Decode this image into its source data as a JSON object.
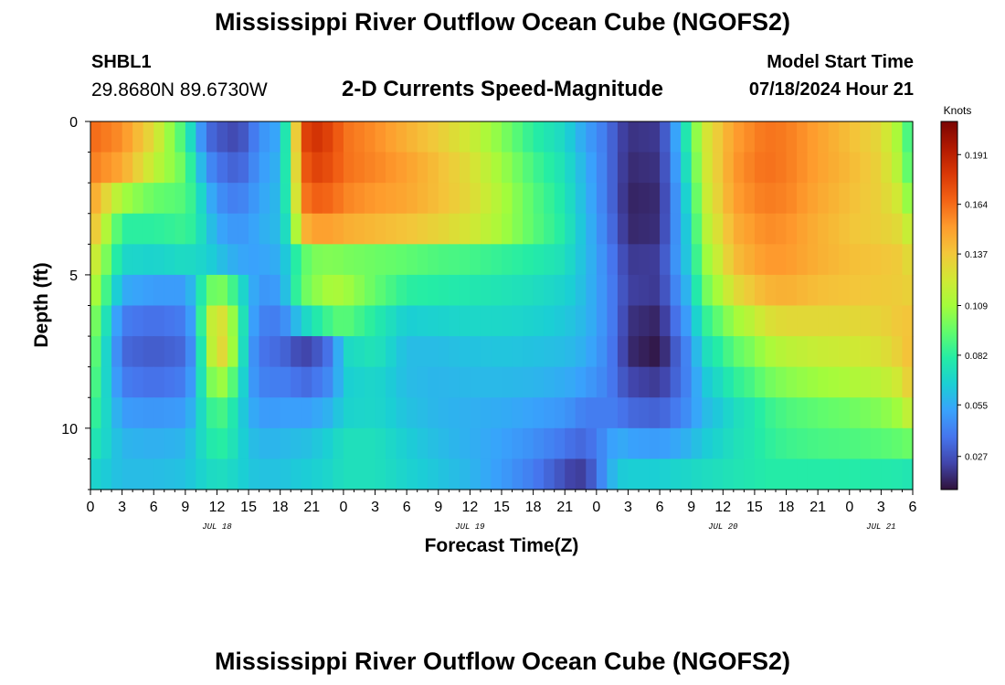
{
  "header": {
    "title": "Mississippi River Outflow Ocean Cube (NGOFS2)",
    "station": "SHBL1",
    "coords": "29.8680N  89.6730W",
    "subtitle": "2-D Currents Speed-Magnitude",
    "model_start_label": "Model Start Time",
    "model_start_value": "07/18/2024 Hour 21"
  },
  "footer": {
    "title": "Mississippi River Outflow Ocean Cube (NGOFS2)"
  },
  "chart_data": {
    "type": "heatmap",
    "title": "2-D Currents Speed-Magnitude",
    "xlabel": "Forecast Time(Z)",
    "ylabel": "Depth (ft)",
    "x_range_hours": [
      0,
      78
    ],
    "y_range_ft": [
      0,
      12
    ],
    "x_tick_labels": [
      "0",
      "3",
      "6",
      "9",
      "12",
      "15",
      "18",
      "21",
      "0",
      "3",
      "6",
      "9",
      "12",
      "15",
      "18",
      "21",
      "0",
      "3",
      "6",
      "9",
      "12",
      "15",
      "18",
      "21",
      "0",
      "3",
      "6"
    ],
    "date_labels": [
      {
        "label": "JUL 18",
        "hour": 12
      },
      {
        "label": "JUL 19",
        "hour": 36
      },
      {
        "label": "JUL 20",
        "hour": 60
      },
      {
        "label": "JUL 21",
        "hour": 75
      }
    ],
    "y_ticks": [
      {
        "value": 0,
        "label": "0"
      },
      {
        "value": 5,
        "label": "5"
      },
      {
        "value": 10,
        "label": "10"
      }
    ],
    "colorbar": {
      "unit": "Knots",
      "min": 0.009,
      "max": 0.209,
      "ticks": [
        "0.191",
        "0.164",
        "0.137",
        "0.109",
        "0.082",
        "0.055",
        "0.027"
      ],
      "tick_values": [
        0.191,
        0.164,
        0.137,
        0.109,
        0.082,
        0.055,
        0.027
      ]
    },
    "colormap": [
      "#30123b",
      "#4145ab",
      "#4675ed",
      "#39a2fc",
      "#1bcfd4",
      "#24eca6",
      "#61fc6c",
      "#a4fc3b",
      "#d1e834",
      "#f3c63a",
      "#fe9b2d",
      "#f36315",
      "#d93806",
      "#b11901",
      "#7a0403"
    ],
    "depth_levels_ft": [
      0.5,
      1.5,
      2.5,
      3.5,
      4.5,
      5.5,
      6.5,
      7.5,
      8.5,
      9.5,
      10.5,
      11.5
    ],
    "time_nodes_hours": [
      0,
      3,
      6,
      9,
      10,
      11,
      12,
      13,
      14,
      15,
      16,
      18,
      19,
      20,
      21,
      23,
      24,
      27,
      30,
      33,
      36,
      39,
      42,
      45,
      46,
      47,
      48,
      49,
      50,
      51,
      54,
      55,
      57,
      58,
      60,
      61,
      63,
      64,
      66,
      69,
      72,
      75,
      77,
      78
    ],
    "speed_knots": [
      [
        0.165,
        0.155,
        0.128,
        0.085,
        0.06,
        0.036,
        0.03,
        0.026,
        0.024,
        0.033,
        0.046,
        0.055,
        0.1,
        0.17,
        0.185,
        0.175,
        0.163,
        0.155,
        0.145,
        0.135,
        0.122,
        0.102,
        0.082,
        0.07,
        0.06,
        0.052,
        0.045,
        0.038,
        0.026,
        0.018,
        0.02,
        0.04,
        0.09,
        0.12,
        0.14,
        0.15,
        0.158,
        0.162,
        0.16,
        0.15,
        0.14,
        0.13,
        0.105,
        0.075
      ],
      [
        0.16,
        0.148,
        0.118,
        0.095,
        0.07,
        0.048,
        0.038,
        0.034,
        0.031,
        0.038,
        0.049,
        0.058,
        0.098,
        0.163,
        0.178,
        0.172,
        0.163,
        0.157,
        0.15,
        0.14,
        0.128,
        0.108,
        0.088,
        0.074,
        0.064,
        0.056,
        0.047,
        0.038,
        0.026,
        0.016,
        0.018,
        0.038,
        0.085,
        0.118,
        0.14,
        0.152,
        0.16,
        0.163,
        0.16,
        0.15,
        0.142,
        0.132,
        0.11,
        0.08
      ],
      [
        0.152,
        0.11,
        0.096,
        0.091,
        0.08,
        0.06,
        0.048,
        0.042,
        0.04,
        0.045,
        0.052,
        0.06,
        0.094,
        0.156,
        0.168,
        0.165,
        0.158,
        0.152,
        0.148,
        0.14,
        0.13,
        0.112,
        0.092,
        0.077,
        0.066,
        0.058,
        0.048,
        0.038,
        0.026,
        0.014,
        0.016,
        0.036,
        0.078,
        0.115,
        0.138,
        0.15,
        0.157,
        0.16,
        0.158,
        0.148,
        0.14,
        0.133,
        0.12,
        0.092
      ],
      [
        0.145,
        0.082,
        0.082,
        0.086,
        0.08,
        0.066,
        0.055,
        0.05,
        0.048,
        0.05,
        0.055,
        0.06,
        0.085,
        0.14,
        0.15,
        0.15,
        0.146,
        0.142,
        0.138,
        0.132,
        0.124,
        0.11,
        0.093,
        0.079,
        0.068,
        0.06,
        0.05,
        0.04,
        0.028,
        0.015,
        0.017,
        0.037,
        0.073,
        0.11,
        0.132,
        0.145,
        0.152,
        0.156,
        0.154,
        0.145,
        0.138,
        0.134,
        0.128,
        0.112
      ],
      [
        0.13,
        0.07,
        0.068,
        0.072,
        0.07,
        0.068,
        0.063,
        0.058,
        0.054,
        0.052,
        0.052,
        0.056,
        0.072,
        0.09,
        0.1,
        0.102,
        0.1,
        0.097,
        0.094,
        0.09,
        0.088,
        0.084,
        0.08,
        0.074,
        0.066,
        0.06,
        0.052,
        0.043,
        0.032,
        0.02,
        0.021,
        0.04,
        0.07,
        0.102,
        0.126,
        0.14,
        0.148,
        0.152,
        0.152,
        0.145,
        0.14,
        0.138,
        0.135,
        0.125
      ],
      [
        0.12,
        0.055,
        0.05,
        0.05,
        0.065,
        0.092,
        0.102,
        0.096,
        0.078,
        0.06,
        0.048,
        0.05,
        0.072,
        0.094,
        0.102,
        0.112,
        0.11,
        0.095,
        0.082,
        0.08,
        0.078,
        0.076,
        0.073,
        0.068,
        0.064,
        0.059,
        0.052,
        0.044,
        0.034,
        0.022,
        0.02,
        0.036,
        0.064,
        0.094,
        0.115,
        0.128,
        0.138,
        0.143,
        0.145,
        0.14,
        0.138,
        0.136,
        0.135,
        0.132
      ],
      [
        0.11,
        0.04,
        0.036,
        0.04,
        0.06,
        0.108,
        0.13,
        0.122,
        0.09,
        0.06,
        0.042,
        0.04,
        0.052,
        0.066,
        0.075,
        0.09,
        0.094,
        0.08,
        0.066,
        0.068,
        0.07,
        0.07,
        0.068,
        0.064,
        0.061,
        0.058,
        0.052,
        0.044,
        0.034,
        0.018,
        0.014,
        0.03,
        0.056,
        0.08,
        0.098,
        0.108,
        0.118,
        0.126,
        0.13,
        0.13,
        0.13,
        0.132,
        0.138,
        0.138
      ],
      [
        0.104,
        0.034,
        0.03,
        0.034,
        0.055,
        0.1,
        0.133,
        0.126,
        0.09,
        0.055,
        0.038,
        0.034,
        0.03,
        0.022,
        0.025,
        0.04,
        0.07,
        0.076,
        0.06,
        0.06,
        0.062,
        0.063,
        0.062,
        0.06,
        0.058,
        0.055,
        0.05,
        0.043,
        0.032,
        0.016,
        0.01,
        0.024,
        0.048,
        0.07,
        0.084,
        0.093,
        0.102,
        0.11,
        0.116,
        0.12,
        0.122,
        0.126,
        0.135,
        0.142
      ],
      [
        0.098,
        0.04,
        0.036,
        0.04,
        0.058,
        0.092,
        0.11,
        0.104,
        0.08,
        0.055,
        0.042,
        0.04,
        0.04,
        0.034,
        0.036,
        0.046,
        0.066,
        0.07,
        0.06,
        0.058,
        0.059,
        0.059,
        0.058,
        0.055,
        0.053,
        0.05,
        0.046,
        0.042,
        0.034,
        0.024,
        0.02,
        0.028,
        0.046,
        0.062,
        0.074,
        0.082,
        0.09,
        0.097,
        0.103,
        0.108,
        0.112,
        0.116,
        0.125,
        0.14
      ],
      [
        0.09,
        0.05,
        0.048,
        0.05,
        0.062,
        0.08,
        0.09,
        0.086,
        0.07,
        0.058,
        0.05,
        0.05,
        0.052,
        0.05,
        0.052,
        0.058,
        0.068,
        0.07,
        0.062,
        0.058,
        0.056,
        0.055,
        0.052,
        0.048,
        0.044,
        0.04,
        0.04,
        0.04,
        0.04,
        0.034,
        0.032,
        0.036,
        0.048,
        0.058,
        0.066,
        0.072,
        0.078,
        0.084,
        0.09,
        0.094,
        0.097,
        0.102,
        0.11,
        0.125
      ],
      [
        0.08,
        0.058,
        0.056,
        0.058,
        0.066,
        0.076,
        0.082,
        0.08,
        0.07,
        0.062,
        0.058,
        0.058,
        0.06,
        0.06,
        0.062,
        0.068,
        0.074,
        0.074,
        0.066,
        0.06,
        0.056,
        0.052,
        0.046,
        0.038,
        0.034,
        0.034,
        0.04,
        0.048,
        0.056,
        0.052,
        0.05,
        0.052,
        0.058,
        0.064,
        0.07,
        0.074,
        0.078,
        0.082,
        0.086,
        0.089,
        0.09,
        0.092,
        0.095,
        0.098
      ],
      [
        0.07,
        0.06,
        0.06,
        0.062,
        0.066,
        0.07,
        0.073,
        0.072,
        0.068,
        0.064,
        0.062,
        0.062,
        0.064,
        0.065,
        0.066,
        0.07,
        0.074,
        0.074,
        0.068,
        0.063,
        0.058,
        0.05,
        0.04,
        0.026,
        0.02,
        0.023,
        0.036,
        0.052,
        0.064,
        0.066,
        0.066,
        0.068,
        0.07,
        0.072,
        0.074,
        0.076,
        0.078,
        0.08,
        0.08,
        0.08,
        0.08,
        0.079,
        0.078,
        0.076
      ]
    ]
  }
}
